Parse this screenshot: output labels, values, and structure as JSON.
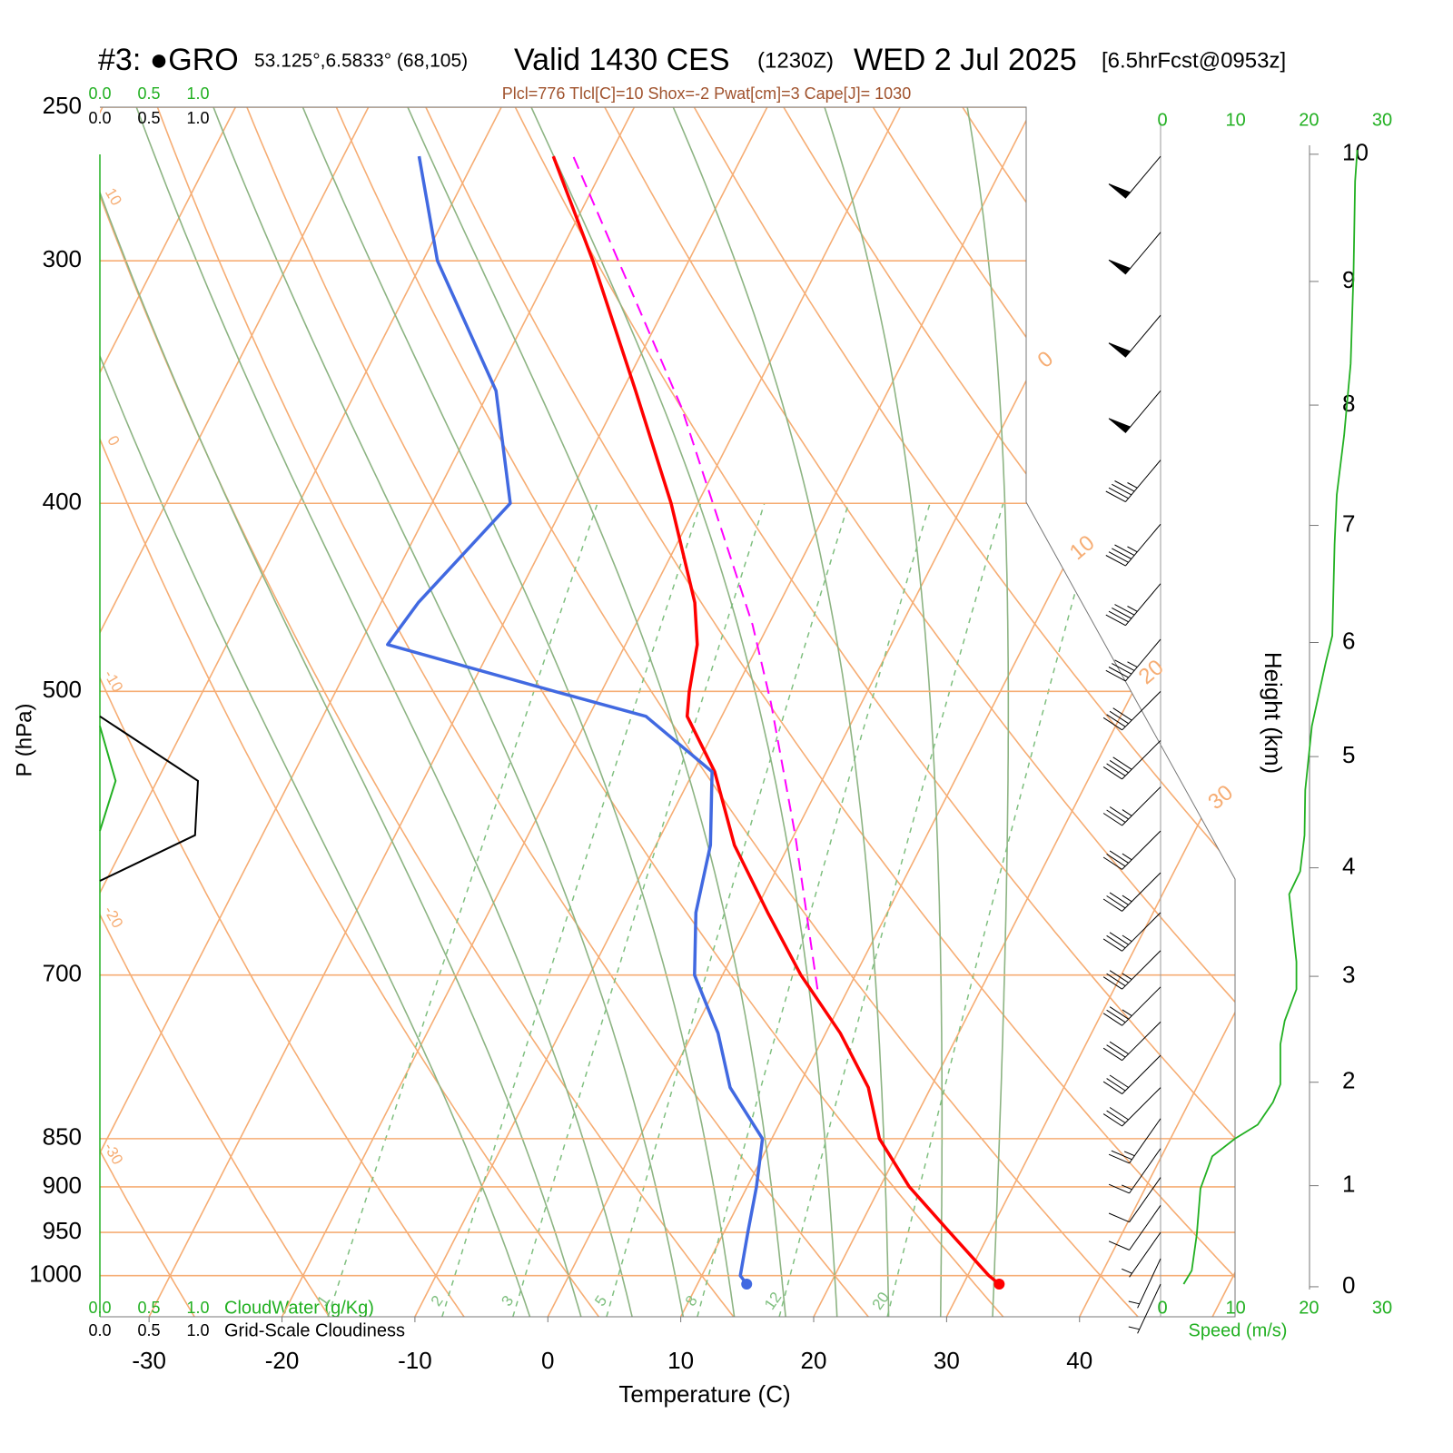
{
  "chart_data": {
    "type": "skewt",
    "title_parts": [
      "#3: ●GRO",
      "53.125°,6.5833° (68,105)",
      "Valid 1430 CES",
      "(1230Z)",
      "WED 2 Jul 2025",
      "[6.5hrFcst@0953z]"
    ],
    "subtitle": "Plcl=776 Tlcl[C]=10 Shox=-2 Pwat[cm]=3 Cape[J]= 1030",
    "xlabel": "Temperature (C)",
    "ylabel": "P (hPa)",
    "y2label": "Height (km)",
    "speed_label": "Speed (m/s)",
    "cloud_water_label": "CloudWater (g/Kg)",
    "cloudiness_label": "Grid-Scale Cloudiness",
    "xlim": [
      -33.7,
      51.7
    ],
    "xticks": [
      -30,
      -20,
      -10,
      0,
      10,
      20,
      30,
      40
    ],
    "ylim": [
      1050,
      250
    ],
    "yticks": [
      250,
      300,
      400,
      500,
      700,
      850,
      900,
      950,
      1000
    ],
    "log_y": true,
    "y2ticks": [
      0,
      1,
      2,
      3,
      4,
      5,
      6,
      7,
      8,
      9,
      10
    ],
    "speed_lim": [
      0,
      30
    ],
    "speed_ticks": [
      0,
      10,
      20,
      30
    ],
    "cloud_lim": [
      0,
      1
    ],
    "cloud_ticks": [
      {
        "value": 0,
        "label": "0.0"
      },
      {
        "value": 0.5,
        "label": "0.5"
      },
      {
        "value": 1,
        "label": "1.0"
      }
    ],
    "isotherms": [
      -80,
      -70,
      -60,
      -50,
      -40,
      -30,
      -20,
      -10,
      0,
      10,
      20,
      30,
      40,
      50
    ],
    "isotherm_labels": [
      0,
      10,
      20,
      30
    ],
    "dry_adiabats": [
      -30,
      -20,
      -10,
      0,
      10,
      20,
      30,
      40,
      50,
      60,
      70,
      80,
      90,
      100,
      110
    ],
    "dry_adiabat_labels": [
      10,
      0,
      -10,
      -20,
      -30
    ],
    "moist_adiabats": [
      -4,
      0,
      4,
      8,
      12,
      16,
      20,
      24,
      28,
      32
    ],
    "mixing_ratios": [
      1,
      2,
      3,
      5,
      8,
      12,
      20
    ],
    "series": [
      {
        "color": "#ff0000",
        "surface_marker": true,
        "pressure": [
          1010,
          1000,
          950,
          900,
          850,
          800,
          750,
          700,
          650,
          600,
          550,
          515,
          500,
          473,
          450,
          400,
          350,
          300,
          265
        ],
        "values": [
          32.7,
          31.6,
          27.0,
          22.2,
          18.1,
          15.3,
          11.1,
          5.9,
          1.0,
          -4.1,
          -8.4,
          -12.6,
          -13.4,
          -14.6,
          -16.4,
          -22.0,
          -29.0,
          -37.2,
          -44.2
        ]
      },
      {
        "color": "#4169e1",
        "surface_marker": true,
        "pressure": [
          1010,
          1000,
          950,
          900,
          850,
          800,
          750,
          700,
          650,
          600,
          550,
          515,
          500,
          473,
          450,
          400,
          350,
          300,
          265
        ],
        "values": [
          13.7,
          12.9,
          11.8,
          10.7,
          9.3,
          4.9,
          1.9,
          -2.1,
          -4.4,
          -5.9,
          -8.6,
          -15.7,
          -23.5,
          -37.9,
          -37.2,
          -34.1,
          -39.5,
          -48.9,
          -54.3
        ]
      },
      {
        "color": "#ff00ff",
        "dashed": true,
        "pressure": [
          712,
          593,
          507,
          462,
          357,
          265
        ],
        "values": [
          7.7,
          0.1,
          -6.8,
          -11.2,
          -24.9,
          -42.7
        ]
      }
    ],
    "wind_speed": {
      "color": "#22b022",
      "pressure": [
        1010,
        994,
        952,
        902,
        868,
        850,
        836,
        814,
        797,
        760,
        739,
        712,
        689,
        636,
        619,
        593,
        562,
        521,
        483,
        468,
        420,
        396,
        369,
        339,
        304,
        273,
        263
      ],
      "values": [
        2.9,
        4.0,
        4.7,
        5.2,
        6.8,
        9.9,
        13.0,
        15.1,
        16.1,
        16.1,
        16.7,
        18.3,
        18.3,
        17.3,
        18.8,
        19.4,
        19.5,
        20.4,
        22.3,
        23.2,
        23.5,
        23.8,
        24.8,
        25.7,
        26.1,
        26.3,
        26.6
      ]
    },
    "wind_barbs": {
      "pressure": [
        265,
        290,
        320,
        350,
        380,
        410,
        440,
        470,
        500,
        530,
        560,
        590,
        620,
        650,
        680,
        710,
        740,
        770,
        800,
        830,
        860,
        890,
        920,
        950,
        980,
        1010
      ],
      "direction": [
        220,
        220,
        220,
        220,
        220,
        220,
        220,
        220,
        225,
        225,
        225,
        225,
        225,
        225,
        225,
        225,
        225,
        225,
        225,
        215,
        215,
        215,
        215,
        215,
        205,
        205
      ],
      "speed": [
        26.6,
        26.2,
        26.0,
        25.3,
        24.3,
        23.7,
        23.3,
        23.0,
        21.5,
        20.2,
        19.5,
        19.4,
        18.8,
        17.5,
        18.0,
        18.3,
        16.7,
        16.1,
        16.0,
        14.0,
        8.5,
        5.5,
        5.0,
        4.7,
        4.3,
        2.9
      ]
    },
    "cloud_water": {
      "color": "#22b022",
      "pressure": [
        521,
        556,
        590
      ],
      "values": [
        0,
        0.16,
        0
      ]
    },
    "cloudiness": {
      "color": "#000000",
      "pressure": [
        515,
        556,
        593,
        626
      ],
      "values": [
        0,
        1,
        0.97,
        0
      ]
    }
  }
}
